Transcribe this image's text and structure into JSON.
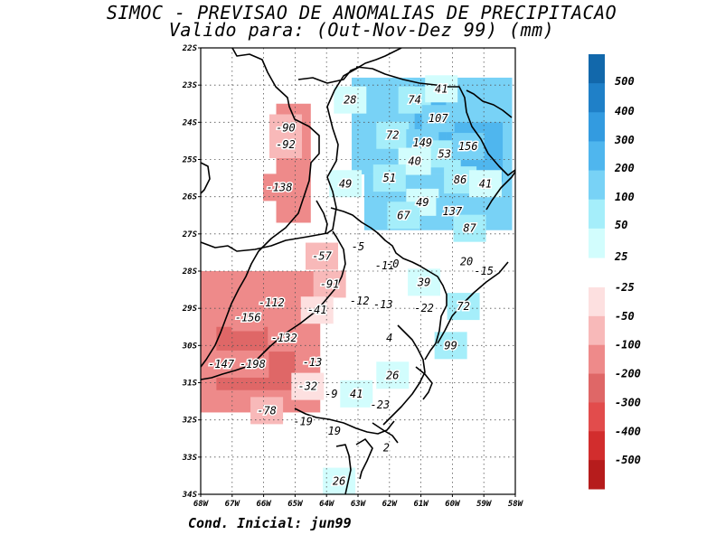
{
  "title": "SIMOC - PREVISAO DE ANOMALIAS DE PRECIPITACAO",
  "subtitle": "Valido para: (Out-Nov-Dez 99) (mm)",
  "footer": "Cond. Inicial: jun99",
  "colors": {
    "pos": [
      "#d2fdfd",
      "#a5eefa",
      "#78d2f6",
      "#4fb6ee",
      "#339be0",
      "#1f80c8",
      "#1268ab"
    ],
    "neg": [
      "#fde0e0",
      "#f8b9b9",
      "#ee8a8a",
      "#df6767",
      "#e24c4c",
      "#d22d2d",
      "#b61c1c"
    ]
  },
  "chart_data": {
    "type": "heatmap",
    "title": "SIMOC - PREVISAO DE ANOMALIAS DE PRECIPITACAO",
    "subtitle": "Valido para: (Out-Nov-Dez 99) (mm)",
    "x_ticks": [
      "68W",
      "67W",
      "66W",
      "65W",
      "64W",
      "63W",
      "62W",
      "61W",
      "60W",
      "59W",
      "58W"
    ],
    "y_ticks": [
      "22S",
      "23S",
      "24S",
      "25S",
      "26S",
      "27S",
      "28S",
      "29S",
      "30S",
      "31S",
      "32S",
      "33S",
      "34S"
    ],
    "xlim": [
      -68,
      -58
    ],
    "ylim": [
      -34,
      -22
    ],
    "grid": true,
    "colorbar": {
      "positive_labels": [
        "500",
        "400",
        "300",
        "200",
        "100",
        "50",
        "25"
      ],
      "negative_labels": [
        "-25",
        "-50",
        "-100",
        "-200",
        "-300",
        "-400",
        "-500"
      ]
    },
    "annotations": [
      {
        "text": "28",
        "lon": -63.25,
        "lat": -23.4
      },
      {
        "text": "74",
        "lon": -61.2,
        "lat": -23.4
      },
      {
        "text": "41",
        "lon": -60.35,
        "lat": -23.1
      },
      {
        "text": "107",
        "lon": -60.45,
        "lat": -23.9
      },
      {
        "text": "-90",
        "lon": -65.3,
        "lat": -24.15
      },
      {
        "text": "-92",
        "lon": -65.3,
        "lat": -24.6
      },
      {
        "text": "72",
        "lon": -61.9,
        "lat": -24.35
      },
      {
        "text": "149",
        "lon": -60.95,
        "lat": -24.55
      },
      {
        "text": "53",
        "lon": -60.25,
        "lat": -24.85
      },
      {
        "text": "156",
        "lon": -59.5,
        "lat": -24.65
      },
      {
        "text": "40",
        "lon": -61.2,
        "lat": -25.05
      },
      {
        "text": "51",
        "lon": -62.0,
        "lat": -25.5
      },
      {
        "text": "86",
        "lon": -59.75,
        "lat": -25.55
      },
      {
        "text": "41",
        "lon": -58.95,
        "lat": -25.65
      },
      {
        "text": "49",
        "lon": -63.4,
        "lat": -25.65
      },
      {
        "text": "-138",
        "lon": -65.5,
        "lat": -25.75
      },
      {
        "text": "49",
        "lon": -60.95,
        "lat": -26.15
      },
      {
        "text": "137",
        "lon": -60.0,
        "lat": -26.4
      },
      {
        "text": "67",
        "lon": -61.55,
        "lat": -26.5
      },
      {
        "text": "87",
        "lon": -59.45,
        "lat": -26.85
      },
      {
        "text": "-5",
        "lon": -63.0,
        "lat": -27.35
      },
      {
        "text": "-57",
        "lon": -64.15,
        "lat": -27.6
      },
      {
        "text": "-11",
        "lon": -62.15,
        "lat": -27.85
      },
      {
        "text": "-0",
        "lon": -61.9,
        "lat": -27.8
      },
      {
        "text": "20",
        "lon": -59.55,
        "lat": -27.75
      },
      {
        "text": "-15",
        "lon": -59.0,
        "lat": -28.0
      },
      {
        "text": "39",
        "lon": -60.9,
        "lat": -28.3
      },
      {
        "text": "-91",
        "lon": -63.9,
        "lat": -28.35
      },
      {
        "text": "-112",
        "lon": -65.75,
        "lat": -28.85
      },
      {
        "text": "-12",
        "lon": -62.95,
        "lat": -28.8
      },
      {
        "text": "-13",
        "lon": -62.2,
        "lat": -28.9
      },
      {
        "text": "-22",
        "lon": -60.9,
        "lat": -29.0
      },
      {
        "text": "72",
        "lon": -59.65,
        "lat": -28.95
      },
      {
        "text": "-156",
        "lon": -66.5,
        "lat": -29.25
      },
      {
        "text": "-41",
        "lon": -64.3,
        "lat": -29.05
      },
      {
        "text": "-132",
        "lon": -65.35,
        "lat": -29.8
      },
      {
        "text": "4",
        "lon": -62.0,
        "lat": -29.8
      },
      {
        "text": "99",
        "lon": -60.05,
        "lat": -30.0
      },
      {
        "text": "-147",
        "lon": -67.35,
        "lat": -30.5
      },
      {
        "text": "-198",
        "lon": -66.35,
        "lat": -30.5
      },
      {
        "text": "-13",
        "lon": -64.45,
        "lat": -30.45
      },
      {
        "text": "26",
        "lon": -61.9,
        "lat": -30.8
      },
      {
        "text": "-32",
        "lon": -64.6,
        "lat": -31.1
      },
      {
        "text": "-9",
        "lon": -63.85,
        "lat": -31.3
      },
      {
        "text": "41",
        "lon": -63.05,
        "lat": -31.3
      },
      {
        "text": "-23",
        "lon": -62.3,
        "lat": -31.6
      },
      {
        "text": "-78",
        "lon": -65.9,
        "lat": -31.75
      },
      {
        "text": "-19",
        "lon": -64.75,
        "lat": -32.05
      },
      {
        "text": "19",
        "lon": -63.75,
        "lat": -32.3
      },
      {
        "text": "2",
        "lon": -62.1,
        "lat": -32.75
      },
      {
        "text": "26",
        "lon": -63.6,
        "lat": -33.65
      }
    ],
    "shaded_regions": [
      {
        "lon": [
          -63.2,
          -58.1
        ],
        "lat": [
          -22.8,
          -25.4
        ],
        "value": 100
      },
      {
        "lon": [
          -62.8,
          -58.1
        ],
        "lat": [
          -25.4,
          -26.9
        ],
        "value": 100
      },
      {
        "lon": [
          -60.2,
          -58.4
        ],
        "lat": [
          -24.0,
          -25.6
        ],
        "value": 200
      },
      {
        "lon": [
          -61.2,
          -60.2
        ],
        "lat": [
          -23.0,
          -24.6
        ],
        "value": 200
      },
      {
        "lon": [
          -65.6,
          -64.5
        ],
        "lat": [
          -23.5,
          -26.7
        ],
        "value": -100
      },
      {
        "lon": [
          -68.0,
          -64.2
        ],
        "lat": [
          -28.0,
          -31.8
        ],
        "value": -100
      },
      {
        "lon": [
          -67.5,
          -65.0
        ],
        "lat": [
          -29.5,
          -31.2
        ],
        "value": -200
      }
    ]
  }
}
